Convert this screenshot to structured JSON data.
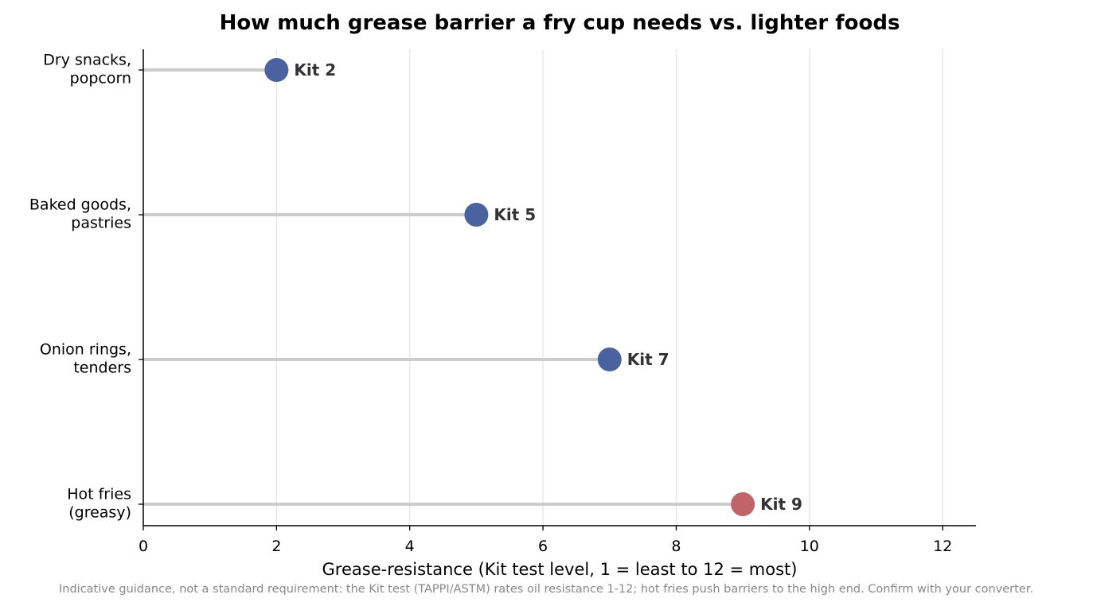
{
  "chart_data": {
    "type": "lollipop",
    "title": "How much grease barrier a fry cup needs vs. lighter foods",
    "xlabel": "Grease-resistance (Kit test level, 1 = least to 12 = most)",
    "ylabel": "",
    "xlim": [
      0,
      12.5
    ],
    "xticks": [
      0,
      2,
      4,
      6,
      8,
      10,
      12
    ],
    "grid": "vertical",
    "categories": [
      [
        "Dry snacks,",
        "popcorn"
      ],
      [
        "Baked goods,",
        "pastries"
      ],
      [
        "Onion rings,",
        "tenders"
      ],
      [
        "Hot fries",
        "(greasy)"
      ]
    ],
    "values": [
      2,
      5,
      7,
      9
    ],
    "data_labels": [
      "Kit 2",
      "Kit 5",
      "Kit 7",
      "Kit 9"
    ],
    "colors": {
      "default_point": "#4a63a0",
      "highlight_point": "#c0646a",
      "stem": "#cccccc",
      "grid": "#e6e6e6",
      "axis": "#000000"
    },
    "highlight_index": 3,
    "footnote": "Indicative guidance, not a standard requirement: the Kit test (TAPPI/ASTM) rates oil resistance 1-12; hot fries push barriers to the high end. Confirm with your converter."
  }
}
